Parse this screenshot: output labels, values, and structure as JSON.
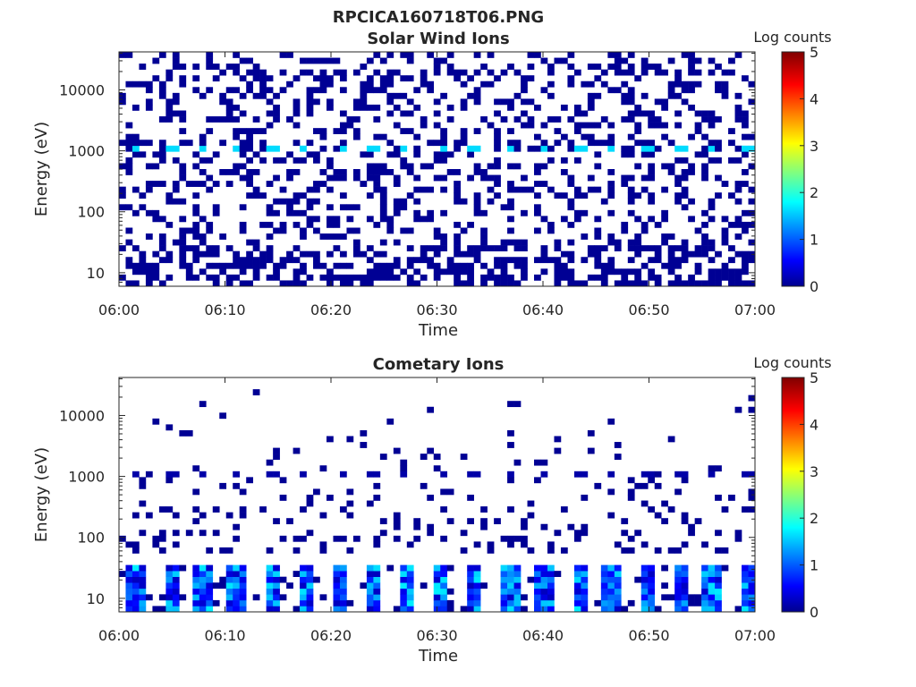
{
  "figure": {
    "title": "RPCICA160718T06.PNG"
  },
  "chart_data": [
    {
      "type": "heatmap",
      "title": "Solar Wind Ions",
      "xlabel": "Time",
      "ylabel": "Energy (eV)",
      "x_tick_labels": [
        "06:00",
        "06:10",
        "06:20",
        "06:30",
        "06:40",
        "06:50",
        "07:00"
      ],
      "x_range": [
        "06:00",
        "07:00"
      ],
      "y_scale": "log",
      "y_tick_labels": [
        "10",
        "100",
        "1000",
        "10000"
      ],
      "y_tick_values": [
        10,
        100,
        1000,
        10000
      ],
      "y_range_eV": [
        6,
        42000
      ],
      "colorbar": {
        "label": "Log counts",
        "range": [
          0,
          5
        ],
        "tick_labels": [
          "0",
          "1",
          "2",
          "3",
          "4",
          "5"
        ],
        "colormap": "jet"
      },
      "observations": {
        "sparse_background_level_log_counts": 0.1,
        "peak_energy_eV": 1100,
        "peak_level_log_counts": 1.7,
        "peak_times": [
          "06:01.5",
          "06:05",
          "06:08",
          "06:11",
          "06:14.5",
          "06:17.5",
          "06:21",
          "06:24",
          "06:27",
          "06:30.5",
          "06:33.5",
          "06:37",
          "06:40",
          "06:43.5",
          "06:46.5",
          "06:50",
          "06:53",
          "06:56",
          "06:59.5"
        ],
        "dense_low_energy_band_eV": [
          6,
          30
        ]
      }
    },
    {
      "type": "heatmap",
      "title": "Cometary Ions",
      "xlabel": "Time",
      "ylabel": "Energy (eV)",
      "x_tick_labels": [
        "06:00",
        "06:10",
        "06:20",
        "06:30",
        "06:40",
        "06:50",
        "07:00"
      ],
      "x_range": [
        "06:00",
        "07:00"
      ],
      "y_scale": "log",
      "y_tick_labels": [
        "10",
        "100",
        "1000",
        "10000"
      ],
      "y_tick_values": [
        10,
        100,
        1000,
        10000
      ],
      "y_range_eV": [
        6,
        42000
      ],
      "colorbar": {
        "label": "Log counts",
        "range": [
          0,
          5
        ],
        "tick_labels": [
          "0",
          "1",
          "2",
          "3",
          "4",
          "5"
        ],
        "colormap": "jet"
      },
      "observations": {
        "sparse_background_level_log_counts": 0.1,
        "scattered_energy_range_eV": [
          50,
          30000
        ],
        "line_energy_eV": 1100,
        "line_level_log_counts": 0.2,
        "bursts_energy_eV": [
          6,
          35
        ],
        "burst_level_range_log_counts": [
          0.3,
          1.8
        ],
        "burst_times": [
          "06:01.5",
          "06:05",
          "06:08",
          "06:11",
          "06:14.5",
          "06:17.5",
          "06:21",
          "06:24",
          "06:27",
          "06:30.5",
          "06:33.5",
          "06:37",
          "06:40",
          "06:43.5",
          "06:46.5",
          "06:50",
          "06:53",
          "06:56",
          "06:59.5"
        ]
      }
    }
  ]
}
